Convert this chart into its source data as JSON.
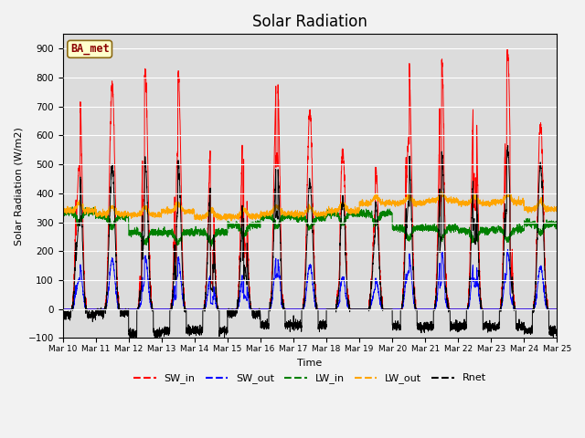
{
  "title": "Solar Radiation",
  "ylabel": "Solar Radiation (W/m2)",
  "xlabel": "Time",
  "ylim": [
    -100,
    950
  ],
  "yticks": [
    -100,
    0,
    100,
    200,
    300,
    400,
    500,
    600,
    700,
    800,
    900
  ],
  "xtick_labels": [
    "Mar 10",
    "Mar 11",
    "Mar 12",
    "Mar 13",
    "Mar 14",
    "Mar 15",
    "Mar 16",
    "Mar 17",
    "Mar 18",
    "Mar 19",
    "Mar 20",
    "Mar 21",
    "Mar 22",
    "Mar 23",
    "Mar 24",
    "Mar 25"
  ],
  "annotation": "BA_met",
  "legend_labels": [
    "SW_in",
    "SW_out",
    "LW_in",
    "LW_out",
    "Rnet"
  ],
  "line_colors": [
    "red",
    "blue",
    "green",
    "orange",
    "black"
  ],
  "bg_color": "#dcdcdc",
  "fig_color": "#f2f2f2",
  "n_days": 15,
  "SW_in_peaks": [
    790,
    770,
    820,
    820,
    570,
    700,
    830,
    680,
    540,
    480,
    850,
    855,
    830,
    880,
    640
  ],
  "SW_out_peaks": [
    165,
    170,
    180,
    175,
    120,
    140,
    185,
    150,
    110,
    100,
    190,
    195,
    185,
    195,
    145
  ],
  "LW_in_base": [
    335,
    320,
    265,
    265,
    265,
    290,
    320,
    315,
    330,
    330,
    280,
    280,
    270,
    275,
    295
  ],
  "LW_out_base": [
    340,
    328,
    325,
    338,
    318,
    320,
    330,
    328,
    338,
    365,
    365,
    375,
    365,
    370,
    345
  ],
  "Rnet_peaks": [
    490,
    490,
    510,
    510,
    430,
    420,
    520,
    440,
    380,
    370,
    540,
    535,
    540,
    555,
    495
  ],
  "Rnet_night": [
    -20,
    -15,
    -85,
    -75,
    -75,
    -15,
    -55,
    -55,
    0,
    0,
    -60,
    -60,
    -60,
    -60,
    -75
  ],
  "day_start": 0.25,
  "day_end": 0.75,
  "peak_sharpness": 3.5
}
